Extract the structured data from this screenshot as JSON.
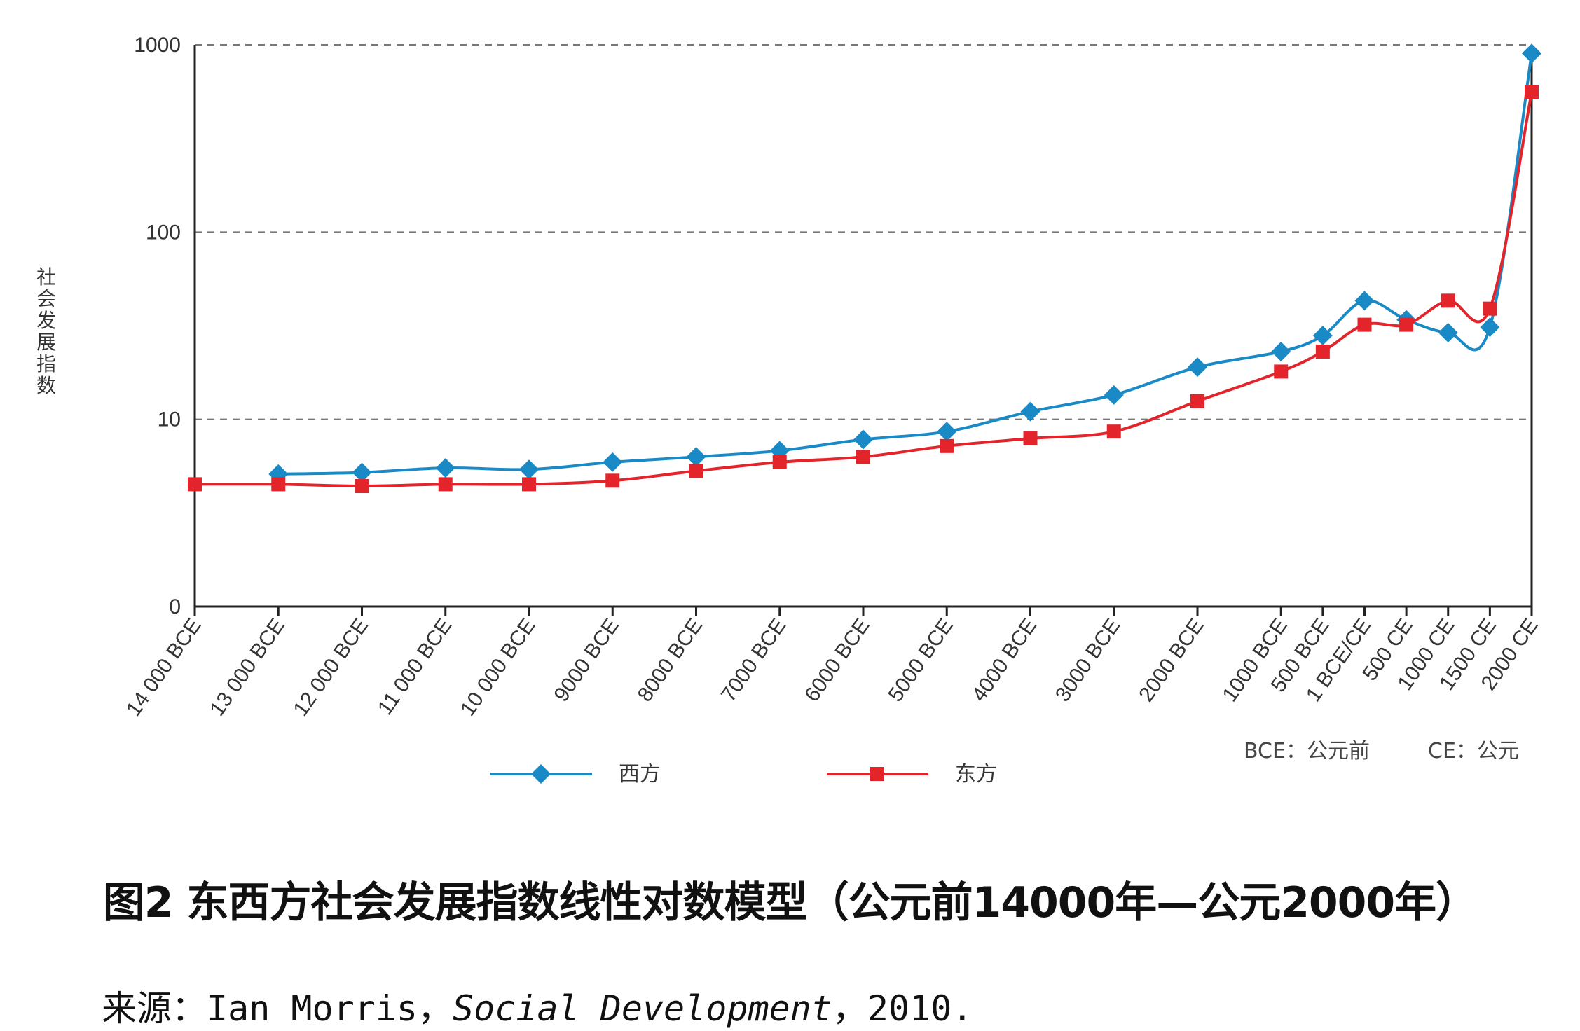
{
  "chart_data": {
    "type": "line",
    "title": "",
    "ylabel": "社会发展指数",
    "xlabel": "",
    "y_scale": "log",
    "yticks": [
      "0",
      "10",
      "100",
      "1000"
    ],
    "ylim": [
      0,
      1000
    ],
    "grid": "horizontal dashed",
    "legend_position": "bottom",
    "categories": [
      "14 000 BCE",
      "13 000 BCE",
      "12 000 BCE",
      "11 000 BCE",
      "10 000 BCE",
      "9000 BCE",
      "8000 BCE",
      "7000 BCE",
      "6000 BCE",
      "5000 BCE",
      "4000 BCE",
      "3000 BCE",
      "2000 BCE",
      "1000 BCE",
      "500 BCE",
      "1 BCE/CE",
      "500 CE",
      "1000 CE",
      "1500 CE",
      "2000 CE"
    ],
    "x_years": [
      -14000,
      -13000,
      -12000,
      -11000,
      -10000,
      -9000,
      -8000,
      -7000,
      -6000,
      -5000,
      -4000,
      -3000,
      -2000,
      -1000,
      -500,
      0,
      500,
      1000,
      1500,
      2000
    ],
    "series": [
      {
        "name": "西方",
        "color": "#1a8ac6",
        "marker": "diamond",
        "values": [
          null,
          5.1,
          5.2,
          5.5,
          5.4,
          5.9,
          6.3,
          6.8,
          7.8,
          8.6,
          11,
          13.5,
          19,
          23,
          28,
          43,
          34,
          29,
          31,
          900
        ]
      },
      {
        "name": "东方",
        "color": "#e3242b",
        "marker": "square",
        "values": [
          4.5,
          4.5,
          4.4,
          4.5,
          4.5,
          4.7,
          5.3,
          5.9,
          6.3,
          7.2,
          7.9,
          8.6,
          12.5,
          18,
          23,
          32,
          32,
          43,
          39,
          560
        ]
      }
    ],
    "note": {
      "bce": "BCE：公元前",
      "ce": "CE：公元"
    }
  },
  "caption": "图2 东西方社会发展指数线性对数模型（公元前14000年—公元2000年）",
  "source": {
    "prefix": "来源：",
    "author": "Ian Morris，",
    "work": "Social Development",
    "year": "，2010."
  }
}
